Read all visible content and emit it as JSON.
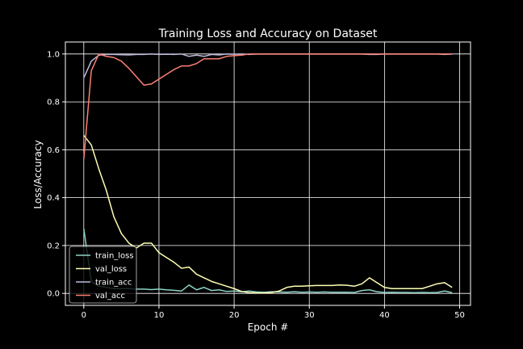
{
  "chart_data": {
    "type": "line",
    "title": "Training Loss and Accuracy on Dataset",
    "xlabel": "Epoch #",
    "ylabel": "Loss/Accuracy",
    "xlim": [
      -2.45,
      51.45
    ],
    "ylim": [
      -0.05,
      1.05
    ],
    "xticks": [
      0,
      10,
      20,
      30,
      40,
      50
    ],
    "yticks": [
      0.0,
      0.2,
      0.4,
      0.6,
      0.8,
      1.0
    ],
    "grid": true,
    "legend_position": "lower-left",
    "x": [
      0,
      1,
      2,
      3,
      4,
      5,
      6,
      7,
      8,
      9,
      10,
      11,
      12,
      13,
      14,
      15,
      16,
      17,
      18,
      19,
      20,
      21,
      22,
      23,
      24,
      25,
      26,
      27,
      28,
      29,
      30,
      31,
      32,
      33,
      34,
      35,
      36,
      37,
      38,
      39,
      40,
      41,
      42,
      43,
      44,
      45,
      46,
      47,
      48,
      49
    ],
    "series": [
      {
        "name": "train_loss",
        "color": "#8dd3c7",
        "values": [
          0.27,
          0.05,
          0.03,
          0.025,
          0.02,
          0.02,
          0.02,
          0.018,
          0.018,
          0.016,
          0.018,
          0.015,
          0.013,
          0.01,
          0.035,
          0.015,
          0.025,
          0.012,
          0.015,
          0.008,
          0.01,
          0.007,
          0.01,
          0.006,
          0.005,
          0.007,
          0.006,
          0.005,
          0.007,
          0.005,
          0.006,
          0.005,
          0.006,
          0.005,
          0.005,
          0.005,
          0.004,
          0.012,
          0.015,
          0.007,
          0.004,
          0.005,
          0.004,
          0.004,
          0.003,
          0.004,
          0.003,
          0.004,
          0.01,
          0.003
        ]
      },
      {
        "name": "val_loss",
        "color": "#ffffb3",
        "values": [
          0.66,
          0.62,
          0.52,
          0.43,
          0.32,
          0.25,
          0.21,
          0.19,
          0.21,
          0.21,
          0.17,
          0.15,
          0.13,
          0.105,
          0.11,
          0.08,
          0.065,
          0.05,
          0.04,
          0.03,
          0.02,
          0.008,
          0.003,
          0.002,
          0.002,
          0.004,
          0.01,
          0.025,
          0.03,
          0.03,
          0.032,
          0.033,
          0.033,
          0.033,
          0.035,
          0.034,
          0.03,
          0.04,
          0.065,
          0.045,
          0.025,
          0.02,
          0.02,
          0.02,
          0.02,
          0.02,
          0.03,
          0.04,
          0.045,
          0.025
        ]
      },
      {
        "name": "train_acc",
        "color": "#bebada",
        "values": [
          0.9,
          0.97,
          0.995,
          0.998,
          0.998,
          0.997,
          0.996,
          0.998,
          0.998,
          1.0,
          0.998,
          0.999,
          0.998,
          1.0,
          0.99,
          0.995,
          0.99,
          0.998,
          0.996,
          1.0,
          0.999,
          1.0,
          0.998,
          1.0,
          1.0,
          1.0,
          1.0,
          1.0,
          1.0,
          1.0,
          1.0,
          1.0,
          1.0,
          1.0,
          1.0,
          1.0,
          1.0,
          1.0,
          0.998,
          0.998,
          1.0,
          1.0,
          1.0,
          1.0,
          1.0,
          1.0,
          1.0,
          1.0,
          0.998,
          1.0
        ]
      },
      {
        "name": "val_acc",
        "color": "#fb8072",
        "values": [
          0.56,
          0.93,
          1.0,
          0.99,
          0.985,
          0.97,
          0.94,
          0.905,
          0.87,
          0.875,
          0.895,
          0.915,
          0.935,
          0.95,
          0.95,
          0.96,
          0.98,
          0.98,
          0.98,
          0.99,
          0.993,
          0.995,
          1.0,
          1.0,
          1.0,
          1.0,
          1.0,
          1.0,
          1.0,
          1.0,
          1.0,
          1.0,
          1.0,
          1.0,
          1.0,
          1.0,
          1.0,
          1.0,
          1.0,
          1.0,
          1.0,
          1.0,
          1.0,
          1.0,
          1.0,
          1.0,
          1.0,
          1.0,
          1.0,
          1.0
        ]
      }
    ],
    "colors": {
      "background": "#000000",
      "foreground": "#ffffff"
    }
  }
}
